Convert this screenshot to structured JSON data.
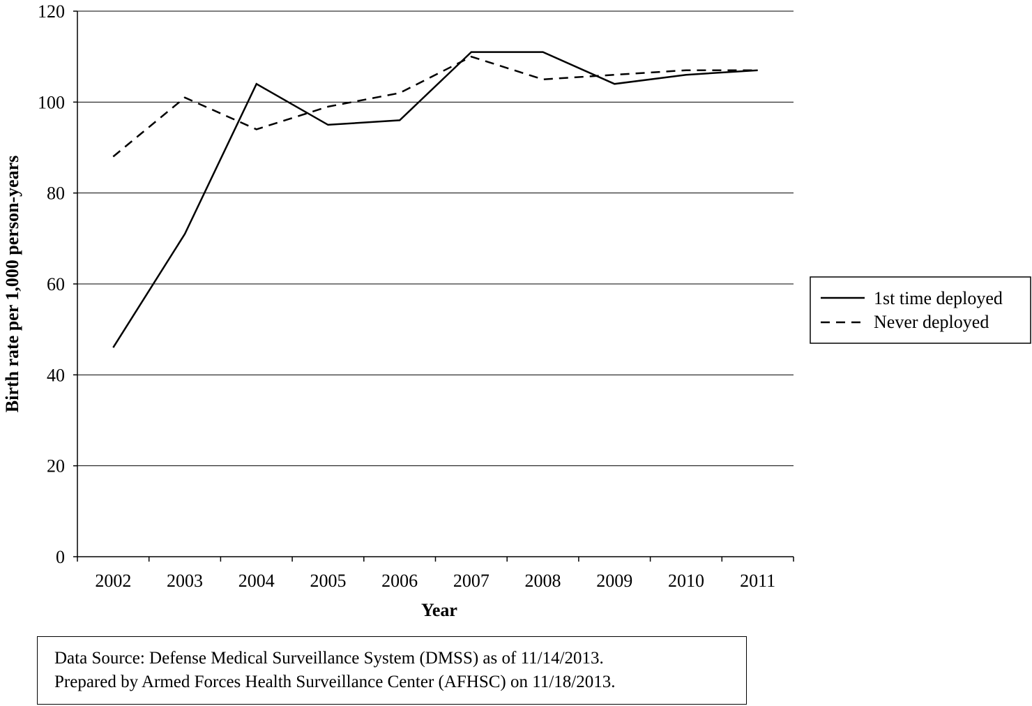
{
  "chart_data": {
    "type": "line",
    "title": "",
    "xlabel": "Year",
    "ylabel": "Birth rate per 1,000 person-years",
    "categories": [
      "2002",
      "2003",
      "2004",
      "2005",
      "2006",
      "2007",
      "2008",
      "2009",
      "2010",
      "2011"
    ],
    "ylim": [
      0,
      120
    ],
    "yticks": [
      0,
      20,
      40,
      60,
      80,
      100,
      120
    ],
    "grid": true,
    "legend_position": "right",
    "series": [
      {
        "name": "1st time deployed",
        "line_style": "solid",
        "color": "#000000",
        "values": [
          46,
          71,
          104,
          95,
          96,
          111,
          111,
          104,
          106,
          107
        ]
      },
      {
        "name": "Never deployed",
        "line_style": "dashed",
        "color": "#000000",
        "values": [
          88,
          101,
          94,
          99,
          102,
          110,
          105,
          106,
          107,
          107
        ]
      }
    ]
  },
  "footnote": {
    "line1": "Data Source: Defense Medical Surveillance System (DMSS) as of 11/14/2013.",
    "line2": "Prepared by Armed Forces Health Surveillance Center (AFHSC) on 11/18/2013."
  }
}
